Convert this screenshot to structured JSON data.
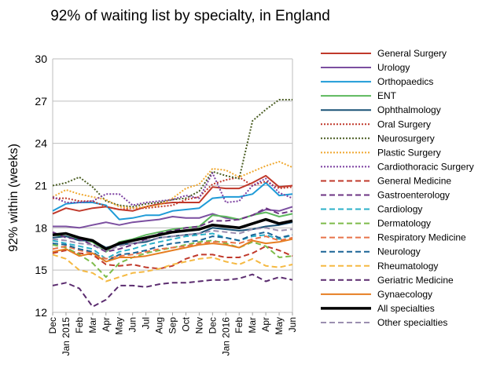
{
  "chart_data": {
    "type": "line",
    "title": "92% of waiting list by specialty, in England",
    "ylabel": "92% within (weeks)",
    "xlabel": "",
    "ylim": [
      12,
      30
    ],
    "yticks": [
      12,
      15,
      18,
      21,
      24,
      27,
      30
    ],
    "grid": true,
    "legend_position": "right",
    "x": [
      "Dec",
      "Jan 2015",
      "Feb",
      "Mar",
      "Apr",
      "May",
      "Jun",
      "Jul",
      "Aug",
      "Sep",
      "Oct",
      "Nov",
      "Dec",
      "Jan 2016",
      "Feb",
      "Mar",
      "Apr",
      "May",
      "Jun"
    ],
    "series": [
      {
        "name": "General Surgery",
        "color": "#c0392b",
        "dash": "solid",
        "width": 2,
        "values": [
          19.0,
          19.4,
          19.2,
          19.4,
          19.5,
          19.3,
          19.2,
          19.5,
          19.7,
          19.8,
          19.8,
          19.8,
          20.9,
          20.8,
          20.8,
          21.2,
          21.7,
          20.9,
          21.0
        ]
      },
      {
        "name": "Urology",
        "color": "#7b4fa0",
        "dash": "solid",
        "width": 2,
        "values": [
          18.1,
          18.1,
          18.0,
          18.2,
          18.4,
          18.2,
          18.4,
          18.5,
          18.6,
          18.8,
          18.7,
          18.7,
          19.0,
          18.7,
          18.6,
          18.9,
          19.3,
          19.2,
          19.5
        ]
      },
      {
        "name": "Orthopaedics",
        "color": "#1f9bd7",
        "dash": "solid",
        "width": 2,
        "values": [
          19.2,
          19.7,
          19.8,
          19.8,
          19.6,
          18.6,
          18.7,
          18.9,
          18.9,
          19.2,
          19.3,
          19.4,
          20.1,
          20.2,
          20.2,
          20.4,
          21.2,
          20.3,
          20.4
        ]
      },
      {
        "name": "ENT",
        "color": "#5cb85c",
        "dash": "solid",
        "width": 2,
        "values": [
          17.5,
          17.4,
          17.2,
          17.0,
          16.3,
          17.0,
          17.2,
          17.5,
          17.7,
          17.9,
          18.0,
          18.1,
          18.9,
          18.8,
          18.6,
          18.9,
          19.1,
          18.8,
          19.0
        ]
      },
      {
        "name": "Ophthalmology",
        "color": "#1a5276",
        "dash": "solid",
        "width": 2,
        "values": [
          17.3,
          17.4,
          17.1,
          17.1,
          16.6,
          16.8,
          16.9,
          17.0,
          17.3,
          17.4,
          17.5,
          17.6,
          18.0,
          17.9,
          17.8,
          17.9,
          18.1,
          18.2,
          18.4
        ]
      },
      {
        "name": "Oral Surgery",
        "color": "#c0392b",
        "dash": "2,2",
        "width": 2,
        "values": [
          20.1,
          20.1,
          19.9,
          19.9,
          19.5,
          19.3,
          19.4,
          19.4,
          19.5,
          19.6,
          20.0,
          20.2,
          21.1,
          21.4,
          21.6,
          21.0,
          21.3,
          20.8,
          20.9
        ]
      },
      {
        "name": "Neurosurgery",
        "color": "#4a5d23",
        "dash": "2,2",
        "width": 2,
        "values": [
          21.0,
          21.2,
          21.6,
          20.9,
          19.9,
          19.6,
          19.5,
          19.7,
          19.8,
          20.0,
          20.1,
          20.6,
          22.0,
          21.7,
          21.5,
          25.6,
          26.4,
          27.1,
          27.1
        ]
      },
      {
        "name": "Plastic Surgery",
        "color": "#f0a830",
        "dash": "2,2",
        "width": 2,
        "values": [
          20.2,
          20.7,
          20.4,
          20.2,
          20.0,
          19.5,
          19.4,
          19.5,
          19.6,
          20.1,
          20.8,
          21.1,
          22.2,
          22.1,
          21.6,
          22.0,
          22.4,
          22.7,
          22.3
        ]
      },
      {
        "name": "Cardiothoracic Surgery",
        "color": "#7b3fa0",
        "dash": "2,2",
        "width": 2,
        "values": [
          20.2,
          19.8,
          19.8,
          19.9,
          20.4,
          20.4,
          19.6,
          19.8,
          19.9,
          20.0,
          20.3,
          20.1,
          21.9,
          19.8,
          19.9,
          21.0,
          21.5,
          20.5,
          20.1
        ]
      },
      {
        "name": "General Medicine",
        "color": "#c0392b",
        "dash": "7,4",
        "width": 2,
        "values": [
          16.2,
          16.4,
          16.2,
          16.1,
          15.4,
          15.3,
          15.4,
          15.2,
          15.1,
          15.3,
          15.8,
          16.1,
          16.1,
          15.9,
          15.9,
          16.2,
          16.7,
          16.4,
          16.0
        ]
      },
      {
        "name": "Gastroenterology",
        "color": "#6c3483",
        "dash": "7,4",
        "width": 2,
        "values": [
          17.7,
          17.3,
          17.2,
          16.8,
          16.3,
          16.5,
          16.8,
          17.2,
          17.6,
          17.8,
          18.0,
          18.1,
          18.5,
          18.5,
          18.6,
          18.9,
          19.4,
          19.0,
          19.2
        ]
      },
      {
        "name": "Cardiology",
        "color": "#2bb0c8",
        "dash": "7,4",
        "width": 2,
        "values": [
          17.1,
          16.9,
          16.7,
          16.5,
          15.8,
          16.3,
          16.5,
          16.8,
          17.0,
          17.2,
          17.4,
          17.5,
          17.6,
          17.3,
          17.1,
          17.4,
          17.5,
          17.2,
          17.5
        ]
      },
      {
        "name": "Dermatology",
        "color": "#7dbb4a",
        "dash": "7,4",
        "width": 2,
        "values": [
          16.8,
          16.6,
          16.1,
          15.5,
          14.5,
          15.5,
          15.9,
          16.2,
          16.4,
          16.6,
          16.8,
          17.0,
          17.1,
          16.9,
          16.6,
          17.0,
          16.7,
          15.9,
          16.0
        ]
      },
      {
        "name": "Respiratory Medicine",
        "color": "#e8734a",
        "dash": "7,4",
        "width": 2,
        "values": [
          16.5,
          16.7,
          16.4,
          16.2,
          15.8,
          16.0,
          16.1,
          16.3,
          16.5,
          16.6,
          16.7,
          16.9,
          17.0,
          17.0,
          16.9,
          17.2,
          17.4,
          17.1,
          17.3
        ]
      },
      {
        "name": "Neurology",
        "color": "#1a6496",
        "dash": "7,4",
        "width": 2,
        "values": [
          16.9,
          16.8,
          16.5,
          16.3,
          15.6,
          16.1,
          16.2,
          16.4,
          16.7,
          16.9,
          17.0,
          17.1,
          17.4,
          17.3,
          17.1,
          17.5,
          17.7,
          17.3,
          17.5
        ]
      },
      {
        "name": "Rheumatology",
        "color": "#f5b942",
        "dash": "7,4",
        "width": 2,
        "values": [
          16.1,
          15.8,
          15.0,
          14.8,
          14.2,
          14.5,
          14.8,
          14.9,
          15.1,
          15.4,
          15.6,
          15.8,
          15.9,
          15.6,
          15.4,
          15.8,
          15.3,
          15.2,
          15.4
        ]
      },
      {
        "name": "Geriatric Medicine",
        "color": "#5b2c6f",
        "dash": "7,4",
        "width": 2,
        "values": [
          13.9,
          14.1,
          13.7,
          12.4,
          12.9,
          13.9,
          13.9,
          13.8,
          14.0,
          14.1,
          14.1,
          14.2,
          14.3,
          14.3,
          14.4,
          14.7,
          14.2,
          14.5,
          14.3
        ]
      },
      {
        "name": "Gynaecology",
        "color": "#e67e22",
        "dash": "solid",
        "width": 2,
        "values": [
          16.3,
          16.5,
          16.0,
          16.2,
          15.6,
          15.9,
          15.9,
          16.0,
          16.2,
          16.4,
          16.6,
          16.8,
          16.9,
          16.8,
          16.6,
          17.1,
          16.9,
          17.0,
          17.2
        ]
      },
      {
        "name": "All specialties",
        "color": "#000000",
        "dash": "solid",
        "width": 3.5,
        "values": [
          17.5,
          17.6,
          17.3,
          17.1,
          16.5,
          16.9,
          17.1,
          17.3,
          17.5,
          17.7,
          17.8,
          17.9,
          18.2,
          18.1,
          18.0,
          18.3,
          18.6,
          18.3,
          18.5
        ]
      },
      {
        "name": "Other specialties",
        "color": "#9b8fb0",
        "dash": "7,4",
        "width": 2,
        "values": [
          17.2,
          17.1,
          16.9,
          16.8,
          16.4,
          16.7,
          16.9,
          17.1,
          17.3,
          17.4,
          17.5,
          17.6,
          17.8,
          17.7,
          17.6,
          17.9,
          18.0,
          17.8,
          17.9
        ]
      }
    ]
  }
}
